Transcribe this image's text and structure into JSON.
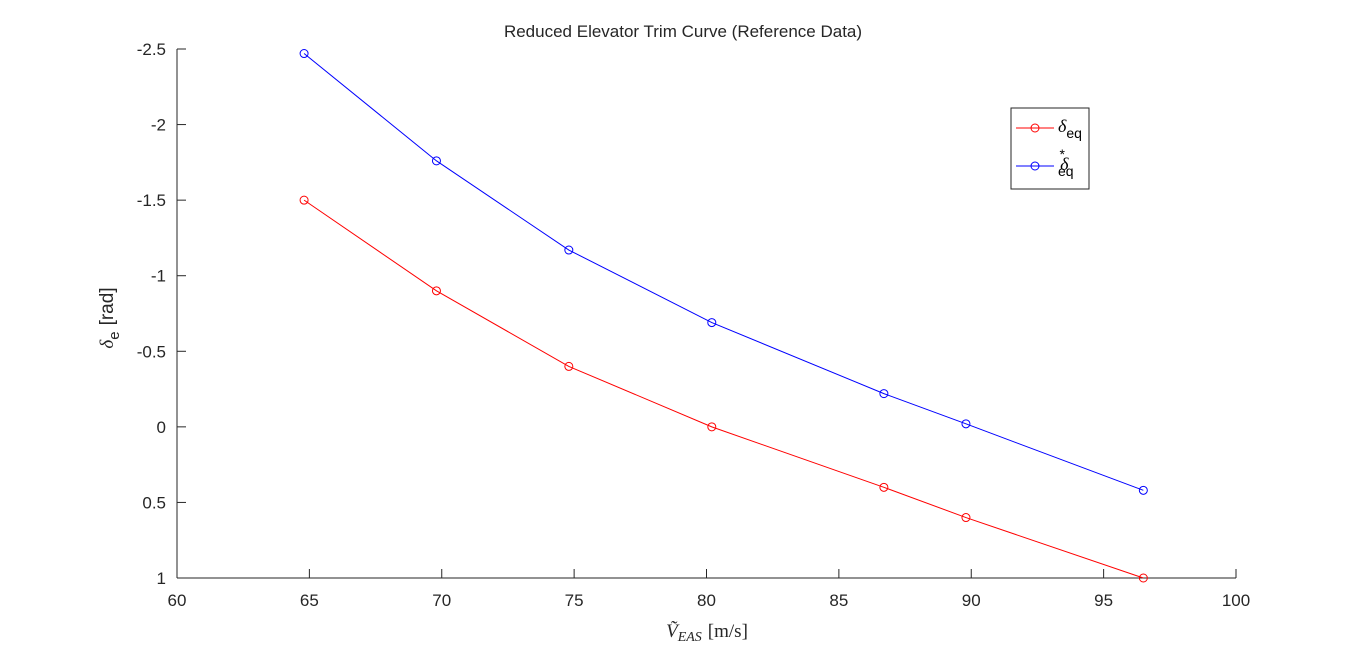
{
  "chart_data": {
    "type": "line",
    "title": "Reduced Elevator Trim Curve (Reference Data)",
    "xlabel": {
      "symbol": "Ṽ",
      "subscript": "EAS",
      "unit": "[m/s]"
    },
    "ylabel": {
      "symbol": "δ",
      "subscript": "e",
      "unit": "[rad]"
    },
    "xlim": [
      60,
      100
    ],
    "ylim": [
      -2.5,
      1
    ],
    "y_reversed": true,
    "x_ticks": [
      60,
      65,
      70,
      75,
      80,
      85,
      90,
      95,
      100
    ],
    "y_ticks": [
      -2.5,
      -2,
      -1.5,
      -1,
      -0.5,
      0,
      0.5,
      1
    ],
    "x_tick_labels": [
      "60",
      "65",
      "70",
      "75",
      "80",
      "85",
      "90",
      "95",
      "100"
    ],
    "y_tick_labels": [
      "-2.5",
      "-2",
      "-1.5",
      "-1",
      "-0.5",
      "0",
      "0.5",
      "1"
    ],
    "grid": false,
    "legend_position": "top-right",
    "series": [
      {
        "name": "δ_eq",
        "legend_symbol": "δ",
        "legend_sub": "eq",
        "legend_sup": "",
        "color": "#ff0000",
        "marker": "circle",
        "x": [
          64.8,
          69.8,
          74.8,
          80.2,
          86.7,
          89.8,
          96.5
        ],
        "y": [
          -1.5,
          -0.9,
          -0.4,
          0.0,
          0.4,
          0.6,
          1.0
        ]
      },
      {
        "name": "δ*_eq",
        "legend_symbol": "δ",
        "legend_sub": "eq",
        "legend_sup": "*",
        "color": "#0000ff",
        "marker": "circle",
        "x": [
          64.8,
          69.8,
          74.8,
          80.2,
          86.7,
          89.8,
          96.5
        ],
        "y": [
          -2.47,
          -1.76,
          -1.17,
          -0.69,
          -0.22,
          -0.02,
          0.42
        ]
      }
    ]
  }
}
